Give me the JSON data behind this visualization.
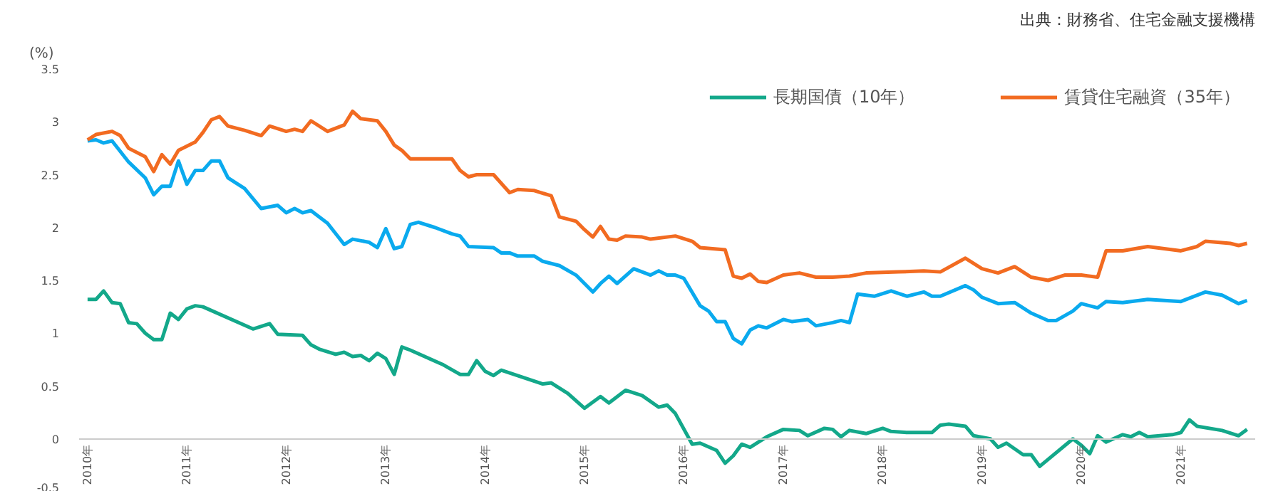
{
  "chart_data": {
    "type": "line",
    "ylabel": "(%)",
    "annotations": [
      "出典：財務省、住宅金融支援機構"
    ],
    "xlim": [
      "2009-12",
      "2021-10"
    ],
    "xticks": [
      {
        "value": "2010-01",
        "label": "2010年"
      },
      {
        "value": "2011-01",
        "label": "2011年"
      },
      {
        "value": "2012-01",
        "label": "2012年"
      },
      {
        "value": "2013-01",
        "label": "2013年"
      },
      {
        "value": "2014-01",
        "label": "2014年"
      },
      {
        "value": "2015-01",
        "label": "2015年"
      },
      {
        "value": "2016-01",
        "label": "2016年"
      },
      {
        "value": "2017-01",
        "label": "2017年"
      },
      {
        "value": "2018-01",
        "label": "2018年"
      },
      {
        "value": "2019-01",
        "label": "2019年"
      },
      {
        "value": "2020-01",
        "label": "2020年"
      },
      {
        "value": "2021-01",
        "label": "2021年"
      }
    ],
    "ylim": [
      -0.5,
      3.5
    ],
    "yticks": [
      -0.5,
      0,
      0.5,
      1,
      1.5,
      2,
      2.5,
      3,
      3.5
    ],
    "grid": false,
    "legend": "top right",
    "marker": "none",
    "line_style": "solid",
    "series": [
      {
        "name": "長期国債（10年）",
        "color": "#13a88a",
        "x": [
          "2010-01",
          "2010-02",
          "2010-03",
          "2010-04",
          "2010-05",
          "2010-06",
          "2010-07",
          "2010-08",
          "2010-09",
          "2010-10",
          "2010-11",
          "2010-12",
          "2011-01",
          "2011-02",
          "2011-03",
          "2011-09",
          "2011-11",
          "2011-12",
          "2012-03",
          "2012-04",
          "2012-05",
          "2012-07",
          "2012-08",
          "2012-09",
          "2012-10",
          "2012-11",
          "2012-12",
          "2013-01",
          "2013-02",
          "2013-03",
          "2013-04",
          "2013-08",
          "2013-10",
          "2013-11",
          "2013-12",
          "2014-01",
          "2014-02",
          "2014-03",
          "2014-08",
          "2014-09",
          "2014-11",
          "2015-01",
          "2015-03",
          "2015-04",
          "2015-06",
          "2015-08",
          "2015-10",
          "2015-11",
          "2015-12",
          "2016-02",
          "2016-03",
          "2016-05",
          "2016-06",
          "2016-07",
          "2016-08",
          "2016-09",
          "2016-11",
          "2017-01",
          "2017-03",
          "2017-04",
          "2017-06",
          "2017-07",
          "2017-08",
          "2017-09",
          "2017-11",
          "2018-01",
          "2018-02",
          "2018-04",
          "2018-07",
          "2018-08",
          "2018-09",
          "2018-11",
          "2018-12",
          "2019-02",
          "2019-03",
          "2019-04",
          "2019-06",
          "2019-07",
          "2019-08",
          "2019-12",
          "2020-01",
          "2020-02",
          "2020-03",
          "2020-04",
          "2020-06",
          "2020-07",
          "2020-08",
          "2020-09",
          "2020-12",
          "2021-01",
          "2021-02",
          "2021-03",
          "2021-06",
          "2021-08",
          "2021-09"
        ],
        "values": [
          1.32,
          1.32,
          1.4,
          1.29,
          1.28,
          1.1,
          1.09,
          1.0,
          0.94,
          0.94,
          1.19,
          1.13,
          1.23,
          1.26,
          1.25,
          1.04,
          1.09,
          0.99,
          0.98,
          0.89,
          0.85,
          0.8,
          0.82,
          0.78,
          0.79,
          0.74,
          0.81,
          0.76,
          0.61,
          0.87,
          0.84,
          0.7,
          0.61,
          0.61,
          0.74,
          0.64,
          0.6,
          0.65,
          0.52,
          0.53,
          0.43,
          0.29,
          0.4,
          0.34,
          0.46,
          0.41,
          0.3,
          0.32,
          0.24,
          -0.05,
          -0.04,
          -0.11,
          -0.23,
          -0.16,
          -0.05,
          -0.08,
          0.02,
          0.09,
          0.08,
          0.03,
          0.1,
          0.09,
          0.02,
          0.08,
          0.05,
          0.1,
          0.07,
          0.06,
          0.06,
          0.13,
          0.14,
          0.12,
          0.03,
          0,
          -0.08,
          -0.04,
          -0.15,
          -0.15,
          -0.26,
          0,
          -0.06,
          -0.14,
          0.03,
          -0.03,
          0.04,
          0.02,
          0.06,
          0.02,
          0.04,
          0.06,
          0.18,
          0.12,
          0.08,
          0.03,
          0.09
        ]
      },
      {
        "color": "#0aaaee",
        "x": [
          "2010-01",
          "2010-02",
          "2010-03",
          "2010-04",
          "2010-06",
          "2010-08",
          "2010-09",
          "2010-10",
          "2010-11",
          "2010-12",
          "2011-01",
          "2011-02",
          "2011-03",
          "2011-04",
          "2011-05",
          "2011-06",
          "2011-08",
          "2011-10",
          "2011-12",
          "2012-01",
          "2012-02",
          "2012-03",
          "2012-04",
          "2012-06",
          "2012-08",
          "2012-09",
          "2012-11",
          "2012-12",
          "2013-01",
          "2013-02",
          "2013-03",
          "2013-04",
          "2013-05",
          "2013-07",
          "2013-09",
          "2013-10",
          "2013-11",
          "2014-02",
          "2014-03",
          "2014-04",
          "2014-05",
          "2014-07",
          "2014-08",
          "2014-10",
          "2014-12",
          "2015-02",
          "2015-03",
          "2015-04",
          "2015-05",
          "2015-07",
          "2015-09",
          "2015-10",
          "2015-11",
          "2015-12",
          "2016-01",
          "2016-03",
          "2016-04",
          "2016-05",
          "2016-06",
          "2016-07",
          "2016-08",
          "2016-09",
          "2016-10",
          "2016-11",
          "2017-01",
          "2017-02",
          "2017-04",
          "2017-05",
          "2017-07",
          "2017-08",
          "2017-09",
          "2017-10",
          "2017-12",
          "2018-02",
          "2018-04",
          "2018-06",
          "2018-07",
          "2018-08",
          "2018-11",
          "2018-12",
          "2019-01",
          "2019-03",
          "2019-05",
          "2019-07",
          "2019-09",
          "2019-10",
          "2019-12",
          "2020-01",
          "2020-03",
          "2020-04",
          "2020-06",
          "2020-09",
          "2021-01",
          "2021-04",
          "2021-06",
          "2021-08",
          "2021-09"
        ],
        "values": [
          2.82,
          2.83,
          2.8,
          2.82,
          2.62,
          2.47,
          2.31,
          2.39,
          2.39,
          2.63,
          2.41,
          2.54,
          2.54,
          2.63,
          2.63,
          2.47,
          2.37,
          2.18,
          2.21,
          2.14,
          2.18,
          2.14,
          2.16,
          2.04,
          1.84,
          1.89,
          1.86,
          1.81,
          1.99,
          1.8,
          1.82,
          2.03,
          2.05,
          2.0,
          1.94,
          1.92,
          1.82,
          1.81,
          1.76,
          1.76,
          1.73,
          1.73,
          1.68,
          1.64,
          1.55,
          1.39,
          1.47,
          1.54,
          1.47,
          1.61,
          1.55,
          1.59,
          1.55,
          1.55,
          1.52,
          1.26,
          1.21,
          1.11,
          1.11,
          0.95,
          0.9,
          1.03,
          1.07,
          1.05,
          1.13,
          1.11,
          1.13,
          1.07,
          1.1,
          1.12,
          1.1,
          1.37,
          1.35,
          1.4,
          1.35,
          1.39,
          1.35,
          1.35,
          1.45,
          1.41,
          1.34,
          1.28,
          1.29,
          1.19,
          1.12,
          1.12,
          1.21,
          1.28,
          1.24,
          1.3,
          1.29,
          1.32,
          1.3,
          1.39,
          1.36,
          1.28,
          1.31
        ]
      },
      {
        "name": "賃貸住宅融資（35年）",
        "color": "#f26b21",
        "x": [
          "2010-01",
          "2010-02",
          "2010-04",
          "2010-05",
          "2010-06",
          "2010-08",
          "2010-09",
          "2010-10",
          "2010-11",
          "2010-12",
          "2011-02",
          "2011-03",
          "2011-04",
          "2011-05",
          "2011-06",
          "2011-08",
          "2011-10",
          "2011-11",
          "2012-01",
          "2012-02",
          "2012-03",
          "2012-04",
          "2012-06",
          "2012-08",
          "2012-09",
          "2012-10",
          "2012-12",
          "2013-01",
          "2013-02",
          "2013-03",
          "2013-04",
          "2013-07",
          "2013-09",
          "2013-10",
          "2013-11",
          "2013-12",
          "2014-02",
          "2014-04",
          "2014-05",
          "2014-07",
          "2014-09",
          "2014-10",
          "2014-12",
          "2015-01",
          "2015-02",
          "2015-03",
          "2015-04",
          "2015-05",
          "2015-06",
          "2015-08",
          "2015-09",
          "2015-12",
          "2016-02",
          "2016-03",
          "2016-06",
          "2016-07",
          "2016-08",
          "2016-09",
          "2016-10",
          "2016-11",
          "2017-01",
          "2017-03",
          "2017-05",
          "2017-07",
          "2017-09",
          "2017-11",
          "2018-03",
          "2018-06",
          "2018-08",
          "2018-11",
          "2019-01",
          "2019-03",
          "2019-05",
          "2019-07",
          "2019-09",
          "2019-11",
          "2020-01",
          "2020-03",
          "2020-04",
          "2020-06",
          "2020-09",
          "2021-01",
          "2021-03",
          "2021-04",
          "2021-07",
          "2021-08",
          "2021-09"
        ],
        "values": [
          2.83,
          2.88,
          2.91,
          2.87,
          2.75,
          2.67,
          2.53,
          2.69,
          2.6,
          2.73,
          2.81,
          2.9,
          3.02,
          3.05,
          2.96,
          2.92,
          2.87,
          2.96,
          2.91,
          2.93,
          2.91,
          3.01,
          2.91,
          2.97,
          3.1,
          3.03,
          3.01,
          2.91,
          2.78,
          2.73,
          2.65,
          2.65,
          2.65,
          2.54,
          2.48,
          2.5,
          2.5,
          2.33,
          2.36,
          2.35,
          2.3,
          2.1,
          2.06,
          1.98,
          1.91,
          2.01,
          1.89,
          1.88,
          1.92,
          1.91,
          1.89,
          1.92,
          1.87,
          1.81,
          1.79,
          1.54,
          1.52,
          1.56,
          1.49,
          1.48,
          1.55,
          1.57,
          1.53,
          1.53,
          1.54,
          1.57,
          1.58,
          1.59,
          1.58,
          1.71,
          1.61,
          1.57,
          1.63,
          1.53,
          1.5,
          1.55,
          1.55,
          1.53,
          1.78,
          1.78,
          1.82,
          1.78,
          1.82,
          1.87,
          1.85,
          1.83,
          1.85
        ]
      }
    ]
  }
}
